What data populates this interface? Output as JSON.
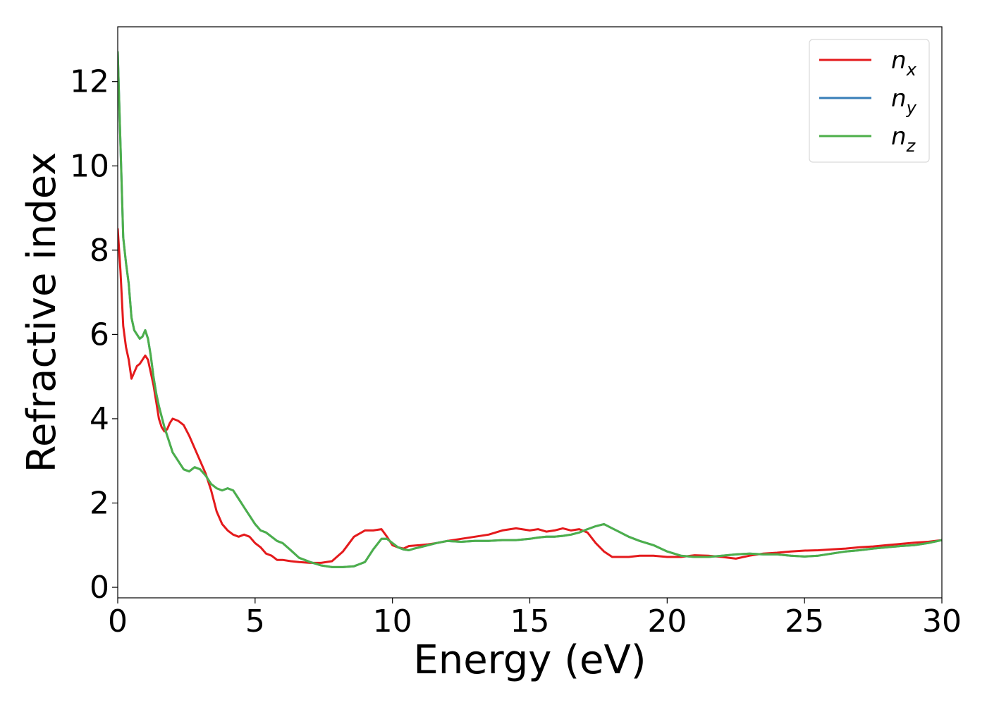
{
  "chart_data": {
    "type": "line",
    "title": "",
    "xlabel": "Energy (eV)",
    "ylabel": "Refractive index",
    "xlim": [
      0,
      30
    ],
    "ylim": [
      -0.25,
      13.3
    ],
    "xticks": [
      0,
      5,
      10,
      15,
      20,
      25,
      30
    ],
    "yticks": [
      0,
      2,
      4,
      6,
      8,
      10,
      12
    ],
    "grid": false,
    "legend_position": "top-right",
    "series": [
      {
        "name": "n",
        "subscript": "x",
        "color": "#e41a1c",
        "x": [
          0,
          0.1,
          0.2,
          0.3,
          0.4,
          0.5,
          0.6,
          0.7,
          0.8,
          0.9,
          1.0,
          1.1,
          1.2,
          1.3,
          1.4,
          1.5,
          1.6,
          1.7,
          1.8,
          1.9,
          2.0,
          2.2,
          2.4,
          2.6,
          2.8,
          3.0,
          3.2,
          3.4,
          3.6,
          3.8,
          4.0,
          4.2,
          4.4,
          4.6,
          4.8,
          5.0,
          5.2,
          5.4,
          5.6,
          5.8,
          6.0,
          6.3,
          6.6,
          7.0,
          7.4,
          7.8,
          8.2,
          8.6,
          9.0,
          9.3,
          9.6,
          9.8,
          10.0,
          10.2,
          10.4,
          10.6,
          10.8,
          11.0,
          11.3,
          11.6,
          12.0,
          12.5,
          13.0,
          13.5,
          14.0,
          14.5,
          15.0,
          15.3,
          15.6,
          15.9,
          16.2,
          16.5,
          16.8,
          17.1,
          17.4,
          17.7,
          18.0,
          18.3,
          18.6,
          19.0,
          19.5,
          20.0,
          20.5,
          21.0,
          21.5,
          22.0,
          22.5,
          23.0,
          23.5,
          24.0,
          24.5,
          25.0,
          25.5,
          26.0,
          26.5,
          27.0,
          27.5,
          28.0,
          28.5,
          29.0,
          29.5,
          30.0
        ],
        "y": [
          8.5,
          7.5,
          6.2,
          5.7,
          5.4,
          4.95,
          5.1,
          5.25,
          5.3,
          5.4,
          5.5,
          5.4,
          5.1,
          4.8,
          4.4,
          4.0,
          3.8,
          3.7,
          3.75,
          3.9,
          4.0,
          3.95,
          3.85,
          3.6,
          3.3,
          3.0,
          2.7,
          2.3,
          1.8,
          1.5,
          1.35,
          1.25,
          1.2,
          1.25,
          1.2,
          1.05,
          0.95,
          0.8,
          0.75,
          0.65,
          0.65,
          0.62,
          0.6,
          0.58,
          0.58,
          0.62,
          0.85,
          1.2,
          1.35,
          1.35,
          1.38,
          1.2,
          1.0,
          0.95,
          0.92,
          0.98,
          0.99,
          1.0,
          1.02,
          1.05,
          1.1,
          1.15,
          1.2,
          1.25,
          1.35,
          1.4,
          1.35,
          1.38,
          1.32,
          1.35,
          1.4,
          1.35,
          1.38,
          1.3,
          1.05,
          0.85,
          0.72,
          0.72,
          0.72,
          0.75,
          0.75,
          0.72,
          0.72,
          0.76,
          0.75,
          0.72,
          0.68,
          0.75,
          0.8,
          0.82,
          0.85,
          0.87,
          0.88,
          0.9,
          0.92,
          0.95,
          0.97,
          1.0,
          1.03,
          1.06,
          1.08,
          1.12
        ]
      },
      {
        "name": "n",
        "subscript": "y",
        "color": "#377eb8",
        "x": [
          0,
          0.1,
          0.2,
          0.3,
          0.4,
          0.5,
          0.6,
          0.7,
          0.8,
          0.9,
          1.0,
          1.1,
          1.2,
          1.3,
          1.4,
          1.5,
          1.6,
          1.7,
          1.8,
          1.9,
          2.0,
          2.2,
          2.4,
          2.6,
          2.8,
          3.0,
          3.2,
          3.4,
          3.6,
          3.8,
          4.0,
          4.2,
          4.4,
          4.6,
          4.8,
          5.0,
          5.2,
          5.4,
          5.6,
          5.8,
          6.0,
          6.3,
          6.6,
          7.0,
          7.4,
          7.8,
          8.2,
          8.6,
          9.0,
          9.3,
          9.6,
          9.8,
          10.0,
          10.2,
          10.4,
          10.6,
          10.8,
          11.0,
          11.3,
          11.6,
          12.0,
          12.5,
          13.0,
          13.5,
          14.0,
          14.5,
          15.0,
          15.3,
          15.6,
          15.9,
          16.2,
          16.5,
          16.8,
          17.1,
          17.4,
          17.7,
          18.0,
          18.3,
          18.6,
          19.0,
          19.5,
          20.0,
          20.5,
          21.0,
          21.5,
          22.0,
          22.5,
          23.0,
          23.5,
          24.0,
          24.5,
          25.0,
          25.5,
          26.0,
          26.5,
          27.0,
          27.5,
          28.0,
          28.5,
          29.0,
          29.5,
          30.0
        ],
        "y": [
          12.7,
          10.5,
          8.3,
          7.7,
          7.2,
          6.4,
          6.1,
          6.0,
          5.9,
          5.95,
          6.1,
          5.9,
          5.5,
          5.0,
          4.6,
          4.3,
          4.05,
          3.8,
          3.6,
          3.4,
          3.2,
          3.0,
          2.8,
          2.75,
          2.85,
          2.8,
          2.65,
          2.45,
          2.35,
          2.3,
          2.35,
          2.3,
          2.1,
          1.9,
          1.7,
          1.5,
          1.35,
          1.3,
          1.2,
          1.1,
          1.05,
          0.88,
          0.7,
          0.6,
          0.52,
          0.48,
          0.48,
          0.5,
          0.6,
          0.9,
          1.15,
          1.15,
          1.05,
          0.95,
          0.9,
          0.88,
          0.92,
          0.95,
          1.0,
          1.05,
          1.1,
          1.08,
          1.1,
          1.1,
          1.12,
          1.12,
          1.15,
          1.18,
          1.2,
          1.2,
          1.22,
          1.25,
          1.3,
          1.38,
          1.45,
          1.5,
          1.4,
          1.3,
          1.2,
          1.1,
          1.0,
          0.85,
          0.75,
          0.72,
          0.72,
          0.75,
          0.78,
          0.8,
          0.78,
          0.78,
          0.75,
          0.73,
          0.75,
          0.8,
          0.85,
          0.88,
          0.92,
          0.95,
          0.98,
          1.0,
          1.05,
          1.12
        ]
      },
      {
        "name": "n",
        "subscript": "z",
        "color": "#4daf4a",
        "x": [
          0,
          0.1,
          0.2,
          0.3,
          0.4,
          0.5,
          0.6,
          0.7,
          0.8,
          0.9,
          1.0,
          1.1,
          1.2,
          1.3,
          1.4,
          1.5,
          1.6,
          1.7,
          1.8,
          1.9,
          2.0,
          2.2,
          2.4,
          2.6,
          2.8,
          3.0,
          3.2,
          3.4,
          3.6,
          3.8,
          4.0,
          4.2,
          4.4,
          4.6,
          4.8,
          5.0,
          5.2,
          5.4,
          5.6,
          5.8,
          6.0,
          6.3,
          6.6,
          7.0,
          7.4,
          7.8,
          8.2,
          8.6,
          9.0,
          9.3,
          9.6,
          9.8,
          10.0,
          10.2,
          10.4,
          10.6,
          10.8,
          11.0,
          11.3,
          11.6,
          12.0,
          12.5,
          13.0,
          13.5,
          14.0,
          14.5,
          15.0,
          15.3,
          15.6,
          15.9,
          16.2,
          16.5,
          16.8,
          17.1,
          17.4,
          17.7,
          18.0,
          18.3,
          18.6,
          19.0,
          19.5,
          20.0,
          20.5,
          21.0,
          21.5,
          22.0,
          22.5,
          23.0,
          23.5,
          24.0,
          24.5,
          25.0,
          25.5,
          26.0,
          26.5,
          27.0,
          27.5,
          28.0,
          28.5,
          29.0,
          29.5,
          30.0
        ],
        "y": [
          12.7,
          10.5,
          8.3,
          7.7,
          7.2,
          6.4,
          6.1,
          6.0,
          5.9,
          5.95,
          6.1,
          5.9,
          5.5,
          5.0,
          4.6,
          4.3,
          4.05,
          3.8,
          3.6,
          3.4,
          3.2,
          3.0,
          2.8,
          2.75,
          2.85,
          2.8,
          2.65,
          2.45,
          2.35,
          2.3,
          2.35,
          2.3,
          2.1,
          1.9,
          1.7,
          1.5,
          1.35,
          1.3,
          1.2,
          1.1,
          1.05,
          0.88,
          0.7,
          0.6,
          0.52,
          0.48,
          0.48,
          0.5,
          0.6,
          0.9,
          1.15,
          1.15,
          1.05,
          0.95,
          0.9,
          0.88,
          0.92,
          0.95,
          1.0,
          1.05,
          1.1,
          1.08,
          1.1,
          1.1,
          1.12,
          1.12,
          1.15,
          1.18,
          1.2,
          1.2,
          1.22,
          1.25,
          1.3,
          1.38,
          1.45,
          1.5,
          1.4,
          1.3,
          1.2,
          1.1,
          1.0,
          0.85,
          0.75,
          0.72,
          0.72,
          0.75,
          0.78,
          0.8,
          0.78,
          0.78,
          0.75,
          0.73,
          0.75,
          0.8,
          0.85,
          0.88,
          0.92,
          0.95,
          0.98,
          1.0,
          1.05,
          1.12
        ]
      }
    ]
  }
}
